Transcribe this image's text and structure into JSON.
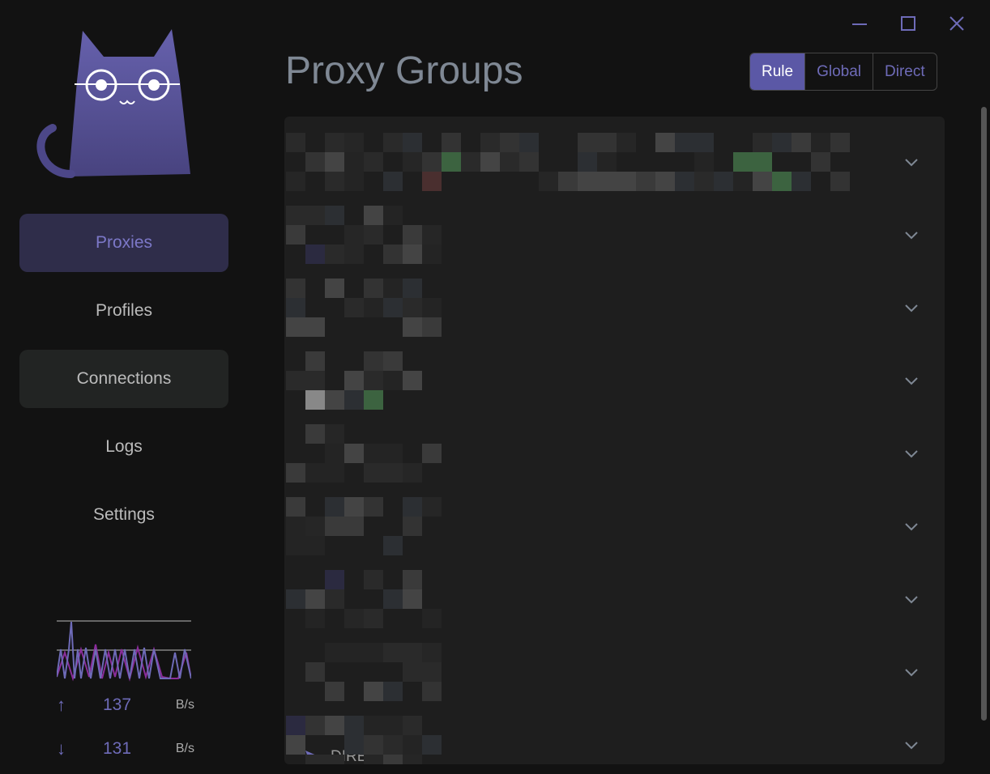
{
  "sidebar": {
    "nav": [
      {
        "label": "Proxies",
        "active": true
      },
      {
        "label": "Profiles"
      },
      {
        "label": "Connections"
      },
      {
        "label": "Logs"
      },
      {
        "label": "Settings"
      }
    ],
    "traffic": {
      "upload": {
        "value": "137",
        "unit": "B/s",
        "icon": "arrow-up-icon"
      },
      "download": {
        "value": "131",
        "unit": "B/s",
        "icon": "arrow-down-icon"
      }
    }
  },
  "header": {
    "title": "Proxy Groups",
    "modes": [
      "Rule",
      "Global",
      "Direct"
    ],
    "selected_mode": "Rule"
  },
  "groups": {
    "count_rows": 9,
    "last_visible_item": "DIRECT"
  },
  "colors": {
    "accent": "#5b58a6",
    "accent_text": "#6e6bb8",
    "upload_line": "#6e6bb8",
    "download_line": "#8a2d9a"
  }
}
